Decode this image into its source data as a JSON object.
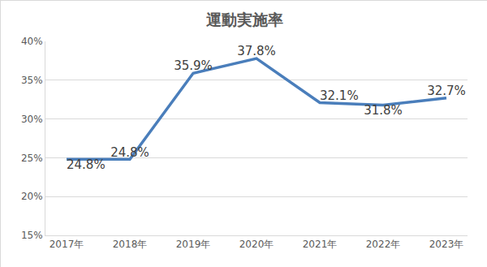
{
  "chart_data": {
    "type": "line",
    "title": "運動実施率",
    "categories": [
      "2017年",
      "2018年",
      "2019年",
      "2020年",
      "2021年",
      "2022年",
      "2023年"
    ],
    "values": [
      24.8,
      24.8,
      35.9,
      37.8,
      32.1,
      31.8,
      32.7
    ],
    "value_labels": [
      "24.8%",
      "24.8%",
      "35.9%",
      "37.8%",
      "32.1%",
      "31.8%",
      "32.7%"
    ],
    "color": "#4a7ebb",
    "ylim": [
      15,
      40
    ],
    "yticks": [
      {
        "value": 15,
        "label": "15%"
      },
      {
        "value": 20,
        "label": "20%"
      },
      {
        "value": 25,
        "label": "25%"
      },
      {
        "value": 30,
        "label": "30%"
      },
      {
        "value": 35,
        "label": "35%"
      },
      {
        "value": 40,
        "label": "40%"
      }
    ],
    "grid": true,
    "data_labels": true
  }
}
